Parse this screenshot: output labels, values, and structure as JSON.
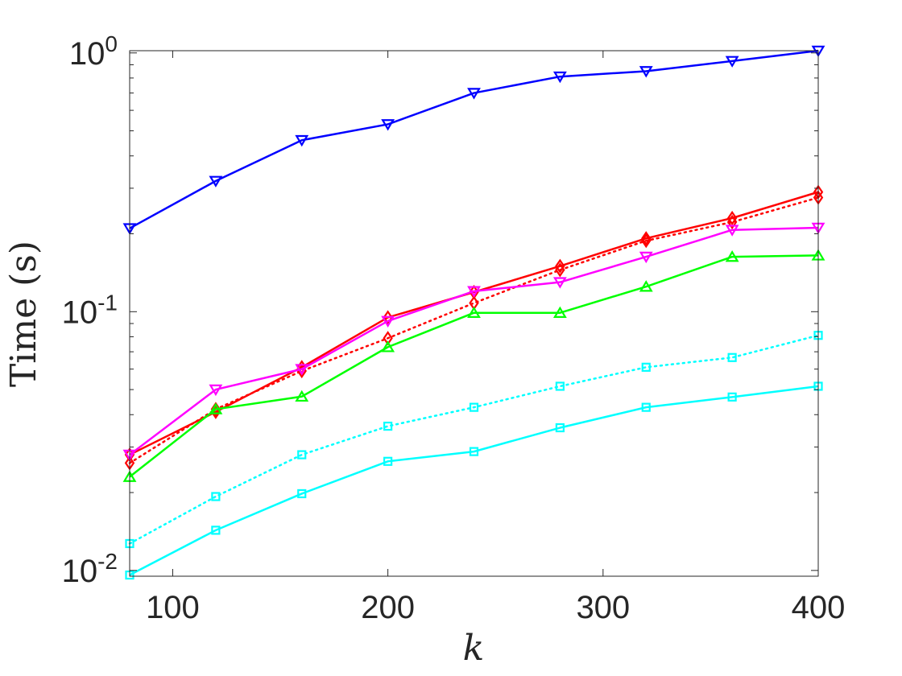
{
  "chart_data": {
    "type": "line",
    "xlabel": "k",
    "ylabel": "Time (s)",
    "xscale": "linear",
    "yscale": "log",
    "xlim": [
      80,
      400
    ],
    "ylim": [
      0.0095,
      1.02
    ],
    "grid": false,
    "legend": "none",
    "xticks": [
      100,
      200,
      300,
      400
    ],
    "xtick_labels": [
      "100",
      "200",
      "300",
      "400"
    ],
    "yticks": [
      0.01,
      0.1,
      1
    ],
    "ytick_labels": [
      {
        "base": "10",
        "exp": "-2"
      },
      {
        "base": "10",
        "exp": "-1"
      },
      {
        "base": "10",
        "exp": "0"
      }
    ],
    "x": [
      80,
      120,
      160,
      200,
      240,
      280,
      320,
      360,
      400
    ],
    "series": [
      {
        "color": "#0000ff",
        "style": "solid",
        "marker": "triangle-down",
        "values": [
          0.21,
          0.32,
          0.46,
          0.53,
          0.7,
          0.81,
          0.85,
          0.93,
          1.02
        ]
      },
      {
        "color": "#ff0000",
        "style": "solid",
        "marker": "diamond",
        "values": [
          0.028,
          0.041,
          0.061,
          0.095,
          0.119,
          0.15,
          0.192,
          0.23,
          0.29
        ]
      },
      {
        "color": "#ff0000",
        "style": "dotted",
        "marker": "diamond",
        "values": [
          0.026,
          0.042,
          0.059,
          0.079,
          0.108,
          0.145,
          0.188,
          0.222,
          0.276
        ]
      },
      {
        "color": "#ff00ff",
        "style": "solid",
        "marker": "triangle-down",
        "values": [
          0.028,
          0.05,
          0.06,
          0.092,
          0.12,
          0.13,
          0.163,
          0.207,
          0.211
        ]
      },
      {
        "color": "#00ff00",
        "style": "solid",
        "marker": "triangle-up",
        "values": [
          0.023,
          0.042,
          0.047,
          0.073,
          0.099,
          0.099,
          0.125,
          0.163,
          0.165
        ]
      },
      {
        "color": "#00ffff",
        "style": "dotted",
        "marker": "square",
        "values": [
          0.0127,
          0.0193,
          0.028,
          0.0361,
          0.0427,
          0.0515,
          0.061,
          0.0665,
          0.081
        ]
      },
      {
        "color": "#00ffff",
        "style": "solid",
        "marker": "square",
        "values": [
          0.0096,
          0.0143,
          0.0198,
          0.0264,
          0.0288,
          0.0356,
          0.0427,
          0.0468,
          0.0515
        ]
      }
    ]
  }
}
